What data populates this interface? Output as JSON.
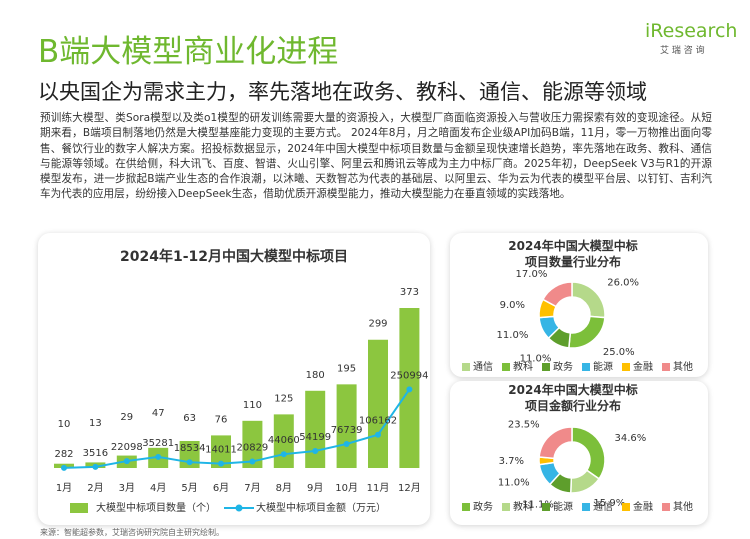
{
  "header": {
    "title": "B端大模型商业化进程",
    "subtitle": "以央国企为需求主力，率先落地在政务、教科、通信、能源等领域",
    "logo": "iResearch",
    "logo_sub": "艾 瑞 咨 询"
  },
  "body": "预训练大模型、类Sora模型以及类o1模型的研发训练需要大量的资源投入，大模型厂商面临资源投入与营收压力需探索有效的变现途径。从短期来看，B端项目制落地仍然是大模型基座能力变现的主要方式。 2024年8月，月之暗面发布企业级API加码B端，11月，零一万物推出面向零售、餐饮行业的数字人解决方案。招投标数据显示，2024年中国大模型中标项目数量与金额呈现快速增长趋势，率先落地在政务、教科、通信与能源等领域。在供给侧，科大讯飞、百度、智谱、火山引擎、阿里云和腾讯云等成为主力中标厂商。2025年初，DeepSeek V3与R1的开源模型发布，进一步掀起B端产业生态的合作浪潮，以沐曦、天数智芯为代表的基础层、以阿里云、华为云为代表的模型平台层、以钉钉、吉利汽车为代表的应用层，纷纷接入DeepSeek生态，借助优质开源模型能力，推动大模型能力在垂直领域的实践落地。",
  "chart_data": [
    {
      "type": "combo",
      "title": "2024年1-12月中国大模型中标项目",
      "categories": [
        "1月",
        "2月",
        "3月",
        "4月",
        "5月",
        "6月",
        "7月",
        "8月",
        "9月",
        "10月",
        "11月",
        "12月"
      ],
      "ylim": [
        0,
        380
      ],
      "y2lim": [
        0,
        520000
      ],
      "series": [
        {
          "name": "大模型中标项目数量（个）",
          "type": "bar",
          "color": "#8cc63f",
          "values": [
            10,
            13,
            29,
            47,
            63,
            76,
            110,
            125,
            180,
            195,
            299,
            373
          ]
        },
        {
          "name": "大模型中标项目金额（万元）",
          "type": "line",
          "axis": "y2",
          "color": "#1fb5e6",
          "values": [
            282,
            3516,
            22098,
            35281,
            18534,
            14011,
            20829,
            44060,
            54199,
            76739,
            106162,
            250994
          ]
        }
      ]
    },
    {
      "type": "donut",
      "title": "2024年中国大模型中标项目数量行业分布",
      "categories": [
        "通信",
        "教科",
        "政务",
        "能源",
        "金融",
        "其他"
      ],
      "colors": [
        "#b5d98a",
        "#7cbf3a",
        "#5e9e2c",
        "#36b5e5",
        "#ffc000",
        "#f08a8a"
      ],
      "values": [
        26.0,
        25.0,
        11.0,
        11.0,
        9.0,
        17.0
      ],
      "value_labels": [
        "26.0%",
        "25.0%",
        "11.0%",
        "11.0%",
        "9.0%",
        "17.0%"
      ]
    },
    {
      "type": "donut",
      "title": "2024年中国大模型中标项目金额行业分布",
      "categories": [
        "政务",
        "教科",
        "能源",
        "通信",
        "金融",
        "其他"
      ],
      "colors": [
        "#7cbf3a",
        "#b5d98a",
        "#5e9e2c",
        "#36b5e5",
        "#ffc000",
        "#f08a8a"
      ],
      "values": [
        34.6,
        15.9,
        11.1,
        11.0,
        3.7,
        23.5
      ],
      "value_labels": [
        "34.6%",
        "15.9%",
        "11.1%",
        "11.0%",
        "3.7%",
        "23.5%"
      ]
    }
  ],
  "source": "来源：智能超参数，艾瑞咨询研究院自主研究绘制。"
}
